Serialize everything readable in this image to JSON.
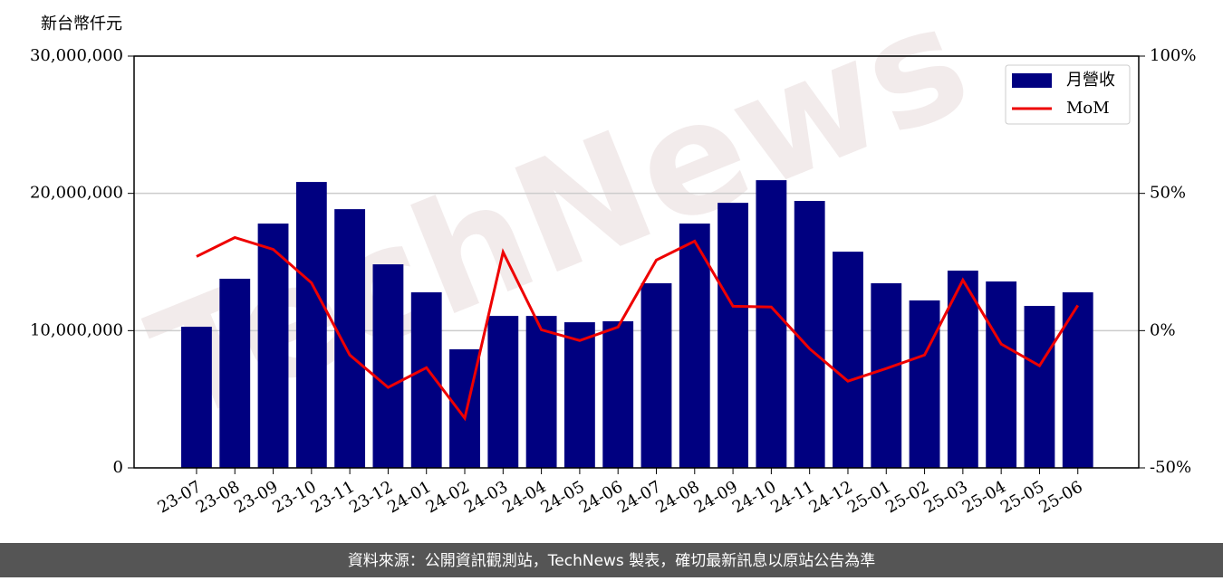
{
  "chart_data": {
    "type": "bar_line",
    "y_label": "新台幣仟元",
    "watermark": "TechNews",
    "footer": "資料來源：公開資訊觀測站，TechNews 製表，確切最新訊息以原站公告為準",
    "categories": [
      "23-07",
      "23-08",
      "23-09",
      "23-10",
      "23-11",
      "23-12",
      "24-01",
      "24-02",
      "24-03",
      "24-04",
      "24-05",
      "24-06",
      "24-07",
      "24-08",
      "24-09",
      "24-10",
      "24-11",
      "24-12",
      "25-01",
      "25-02",
      "25-03",
      "25-04",
      "25-05",
      "25-06"
    ],
    "series": [
      {
        "name": "月營收",
        "color": "#000080",
        "values": [
          10280000,
          13780000,
          17800000,
          20830000,
          18850000,
          14830000,
          12790000,
          8640000,
          11070000,
          11070000,
          10610000,
          10680000,
          13450000,
          17800000,
          19310000,
          20960000,
          19450000,
          15750000,
          13450000,
          12200000,
          14370000,
          13580000,
          11800000,
          12790000
        ]
      },
      {
        "name": "MoM",
        "color": "#ee0000",
        "axis": "y2",
        "values": [
          27,
          33.9,
          29.6,
          17.4,
          -8.9,
          -20.7,
          -13.5,
          -31.9,
          28.6,
          0.3,
          -3.6,
          1.3,
          25.7,
          32.6,
          8.9,
          8.6,
          -6.6,
          -18.4,
          -13.8,
          -8.9,
          18.4,
          -4.9,
          -12.8,
          9.2
        ]
      }
    ],
    "ylim": [
      0,
      30000000
    ],
    "yticks": [
      0,
      {
        "value": 10000000,
        "label": "10,000,000"
      },
      {
        "value": 20000000,
        "label": "20,000,000"
      },
      {
        "value": 30000000,
        "label": "30,000,000"
      }
    ],
    "y2lim": [
      -50,
      100
    ],
    "y2ticks": [
      {
        "value": -50,
        "label": "-50%"
      },
      {
        "value": 0,
        "label": "0%"
      },
      {
        "value": 50,
        "label": "50%"
      },
      {
        "value": 100,
        "label": "100%"
      }
    ],
    "grid": true,
    "legend": "upper right"
  }
}
